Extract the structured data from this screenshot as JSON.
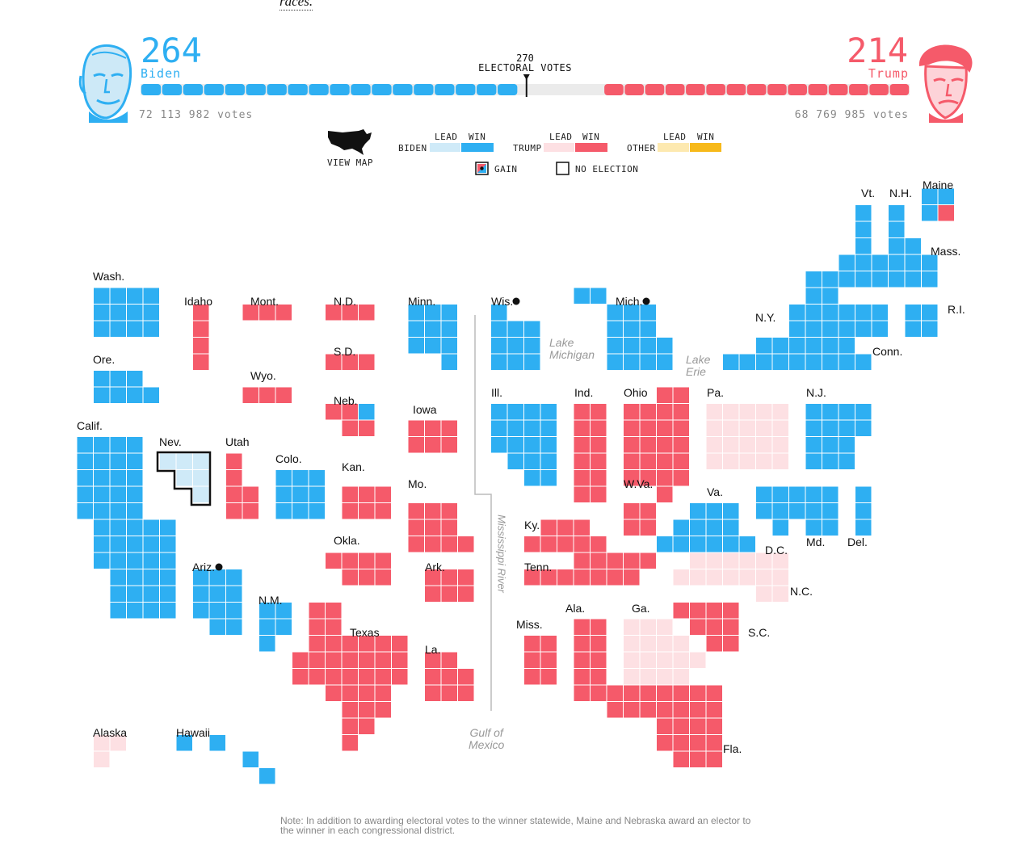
{
  "header": {
    "top_link_text": "races.",
    "threshold_number": "270",
    "threshold_label": "ELECTORAL VOTES"
  },
  "candidates": {
    "biden": {
      "name": "Biden",
      "electoral_votes": "264",
      "popular_votes": "72 113 982 votes",
      "color": "#2eaff2",
      "face_icon": "biden-portrait-icon"
    },
    "trump": {
      "name": "Trump",
      "electoral_votes": "214",
      "popular_votes": "68 769 985 votes",
      "color": "#f55a6a",
      "face_icon": "trump-portrait-icon"
    }
  },
  "progress": {
    "total": 538,
    "biden_win": 264,
    "trump_win": 214,
    "threshold": 270
  },
  "legend": {
    "view_map_label": "VIEW MAP",
    "lead_label": "LEAD",
    "win_label": "WIN",
    "rows": [
      {
        "name": "BIDEN",
        "lead_color": "#cfeaf8",
        "win_color": "#2eaff2"
      },
      {
        "name": "TRUMP",
        "lead_color": "#fde0e3",
        "win_color": "#f55a6a"
      },
      {
        "name": "OTHER",
        "lead_color": "#fde9b0",
        "win_color": "#f7b91a"
      }
    ],
    "gain_label": "GAIN",
    "no_election_label": "NO ELECTION"
  },
  "states": [
    {
      "label": "Vt."
    },
    {
      "label": "N.H."
    },
    {
      "label": "Maine"
    },
    {
      "label": "Mass."
    },
    {
      "label": "R.I."
    },
    {
      "label": "Wash."
    },
    {
      "label": "Idaho"
    },
    {
      "label": "Mont."
    },
    {
      "label": "N.D."
    },
    {
      "label": "Minn."
    },
    {
      "label": "Wis."
    },
    {
      "label": "Mich."
    },
    {
      "label": "N.Y."
    },
    {
      "label": "Conn."
    },
    {
      "label": "Ore."
    },
    {
      "label": "Wyo."
    },
    {
      "label": "S.D."
    },
    {
      "label": "Neb."
    },
    {
      "label": "Iowa"
    },
    {
      "label": "Ill."
    },
    {
      "label": "Ind."
    },
    {
      "label": "Ohio"
    },
    {
      "label": "Pa."
    },
    {
      "label": "N.J."
    },
    {
      "label": "Calif."
    },
    {
      "label": "Nev."
    },
    {
      "label": "Utah"
    },
    {
      "label": "Colo."
    },
    {
      "label": "Kan."
    },
    {
      "label": "Mo."
    },
    {
      "label": "W.Va."
    },
    {
      "label": "Va."
    },
    {
      "label": "Ky."
    },
    {
      "label": "Md."
    },
    {
      "label": "Del."
    },
    {
      "label": "D.C."
    },
    {
      "label": "Okla."
    },
    {
      "label": "Ark."
    },
    {
      "label": "Tenn."
    },
    {
      "label": "N.C."
    },
    {
      "label": "Ariz."
    },
    {
      "label": "N.M."
    },
    {
      "label": "Texas"
    },
    {
      "label": "La."
    },
    {
      "label": "Miss."
    },
    {
      "label": "Ala."
    },
    {
      "label": "Ga."
    },
    {
      "label": "S.C."
    },
    {
      "label": "Fla."
    },
    {
      "label": "Alaska"
    },
    {
      "label": "Hawaii"
    }
  ],
  "geography": {
    "lake_michigan": "Lake\nMichigan",
    "lake_erie": "Lake\nErie",
    "mississippi": "Mississippi River",
    "gulf": "Gulf of\nMexico"
  },
  "note": "Note: In addition to awarding electoral votes to the winner statewide, Maine and Nebraska award an elector to the winner in each congressional district."
}
